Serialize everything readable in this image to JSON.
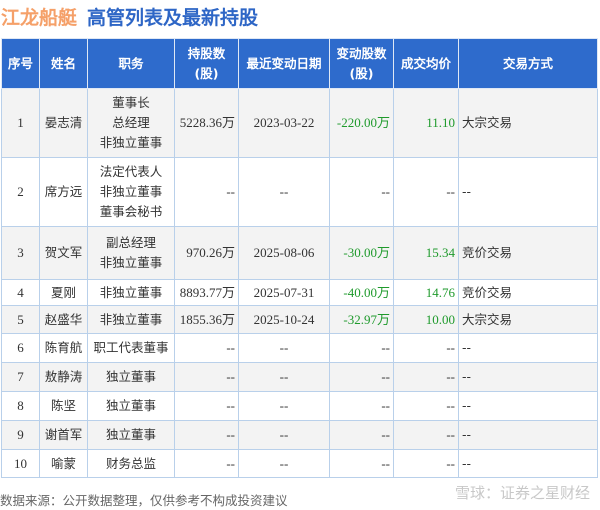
{
  "title": {
    "company": "江龙船艇",
    "subtitle": "高管列表及最新持股"
  },
  "columns": [
    "序号",
    "姓名",
    "职务",
    "持股数\n(股)",
    "最近变动日期",
    "变动股数\n(股)",
    "成交均价",
    "交易方式"
  ],
  "rows": [
    {
      "no": "1",
      "name": "晏志清",
      "roles": [
        "董事长",
        "总经理",
        "非独立董事"
      ],
      "shares": "5228.36万",
      "date": "2023-03-22",
      "change": "-220.00万",
      "price": "11.10",
      "method": "大宗交易"
    },
    {
      "no": "2",
      "name": "席方远",
      "roles": [
        "法定代表人",
        "非独立董事",
        "董事会秘书"
      ],
      "shares": "--",
      "date": "--",
      "change": "--",
      "price": "--",
      "method": "--"
    },
    {
      "no": "3",
      "name": "贺文军",
      "roles": [
        "副总经理",
        "非独立董事"
      ],
      "shares": "970.26万",
      "date": "2025-08-06",
      "change": "-30.00万",
      "price": "15.34",
      "method": "竞价交易"
    },
    {
      "no": "4",
      "name": "夏刚",
      "roles": [
        "非独立董事"
      ],
      "shares": "8893.77万",
      "date": "2025-07-31",
      "change": "-40.00万",
      "price": "14.76",
      "method": "竞价交易"
    },
    {
      "no": "5",
      "name": "赵盛华",
      "roles": [
        "非独立董事"
      ],
      "shares": "1855.36万",
      "date": "2025-10-24",
      "change": "-32.97万",
      "price": "10.00",
      "method": "大宗交易"
    },
    {
      "no": "6",
      "name": "陈育航",
      "roles": [
        "职工代表董事"
      ],
      "shares": "--",
      "date": "--",
      "change": "--",
      "price": "--",
      "method": "--"
    },
    {
      "no": "7",
      "name": "敖静涛",
      "roles": [
        "独立董事"
      ],
      "shares": "--",
      "date": "--",
      "change": "--",
      "price": "--",
      "method": "--"
    },
    {
      "no": "8",
      "name": "陈坚",
      "roles": [
        "独立董事"
      ],
      "shares": "--",
      "date": "--",
      "change": "--",
      "price": "--",
      "method": "--"
    },
    {
      "no": "9",
      "name": "谢首军",
      "roles": [
        "独立董事"
      ],
      "shares": "--",
      "date": "--",
      "change": "--",
      "price": "--",
      "method": "--"
    },
    {
      "no": "10",
      "name": "喻蒙",
      "roles": [
        "财务总监"
      ],
      "shares": "--",
      "date": "--",
      "change": "--",
      "price": "--",
      "method": "--"
    }
  ],
  "footer": {
    "source": "数据来源：公开数据整理，仅供参考不构成投资建议",
    "watermark": "雪球：证券之星财经"
  },
  "colors": {
    "header": "#2e6bcc",
    "positive": "#1f9a2c",
    "brand_orange": "#f5a069",
    "brand_blue": "#2e66c6"
  }
}
